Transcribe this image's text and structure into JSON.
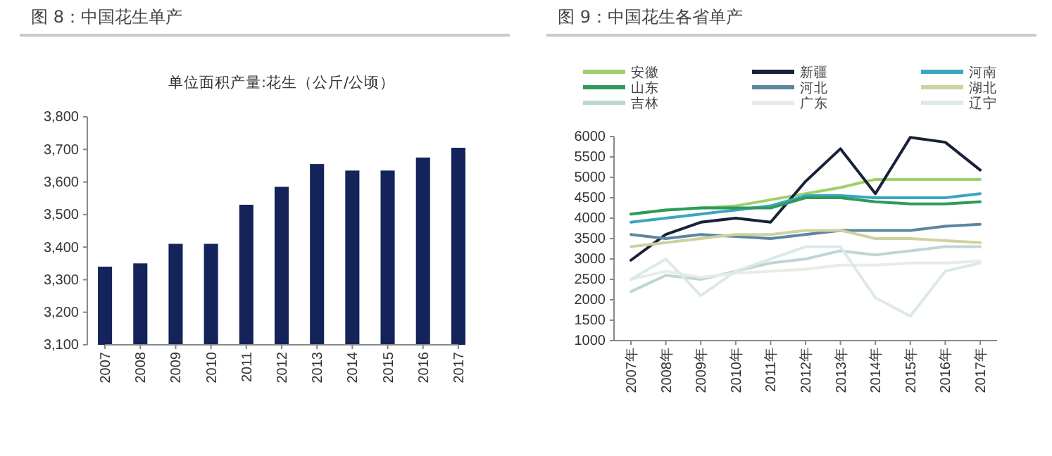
{
  "chart_data": [
    {
      "type": "bar",
      "title": "图 8：中国花生单产",
      "subtitle": "单位面积产量:花生（公斤/公顷）",
      "categories": [
        "2007",
        "2008",
        "2009",
        "2010",
        "2011",
        "2012",
        "2013",
        "2014",
        "2015",
        "2016",
        "2017"
      ],
      "values": [
        3340,
        3350,
        3410,
        3410,
        3530,
        3585,
        3655,
        3635,
        3635,
        3675,
        3705
      ],
      "color": "#14245a",
      "ylim": [
        3100,
        3800
      ],
      "yticks": [
        {
          "value": 3100,
          "label": "3,100"
        },
        {
          "value": 3200,
          "label": "3,200"
        },
        {
          "value": 3300,
          "label": "3,300"
        },
        {
          "value": 3400,
          "label": "3,400"
        },
        {
          "value": 3500,
          "label": "3,500"
        },
        {
          "value": 3600,
          "label": "3,600"
        },
        {
          "value": 3700,
          "label": "3,700"
        },
        {
          "value": 3800,
          "label": "3,800"
        }
      ],
      "grid": false
    },
    {
      "type": "line",
      "title": "图 9：中国花生各省单产",
      "categories": [
        "2007年",
        "2008年",
        "2009年",
        "2010年",
        "2011年",
        "2012年",
        "2013年",
        "2014年",
        "2015年",
        "2016年",
        "2017年"
      ],
      "ylim": [
        1000,
        6000
      ],
      "yticks": [
        1000,
        1500,
        2000,
        2500,
        3000,
        3500,
        4000,
        4500,
        5000,
        5500,
        6000
      ],
      "grid": false,
      "legend": "top",
      "series": [
        {
          "name": "安徽",
          "color": "#9fcf6a",
          "values": [
            4100,
            4200,
            4250,
            4300,
            4450,
            4600,
            4750,
            4950,
            4950,
            4950,
            4950
          ]
        },
        {
          "name": "新疆",
          "color": "#172238",
          "values": [
            2970,
            3600,
            3900,
            4000,
            3900,
            4900,
            5700,
            4600,
            5980,
            5860,
            5180
          ]
        },
        {
          "name": "河南",
          "color": "#3aa6bf",
          "values": [
            3900,
            4000,
            4100,
            4200,
            4300,
            4550,
            4550,
            4500,
            4500,
            4500,
            4600
          ]
        },
        {
          "name": "山东",
          "color": "#2f9a5c",
          "values": [
            4100,
            4200,
            4250,
            4250,
            4250,
            4500,
            4500,
            4400,
            4350,
            4350,
            4400
          ]
        },
        {
          "name": "河北",
          "color": "#5c86a0",
          "values": [
            3600,
            3500,
            3600,
            3550,
            3500,
            3600,
            3700,
            3700,
            3700,
            3800,
            3850
          ]
        },
        {
          "name": "湖北",
          "color": "#cfd1a0",
          "values": [
            3300,
            3400,
            3500,
            3600,
            3600,
            3700,
            3700,
            3500,
            3500,
            3450,
            3400
          ]
        },
        {
          "name": "吉林",
          "color": "#bcd6d4",
          "values": [
            2200,
            2600,
            2500,
            2700,
            2900,
            3000,
            3200,
            3100,
            3200,
            3300,
            3300
          ]
        },
        {
          "name": "广东",
          "color": "#e8ece6",
          "values": [
            2500,
            2700,
            2550,
            2650,
            2700,
            2750,
            2850,
            2850,
            2900,
            2900,
            2950
          ]
        },
        {
          "name": "辽宁",
          "color": "#dce9ea",
          "values": [
            2500,
            3000,
            2100,
            2700,
            3000,
            3300,
            3300,
            2050,
            1600,
            2700,
            2900
          ]
        }
      ]
    }
  ]
}
